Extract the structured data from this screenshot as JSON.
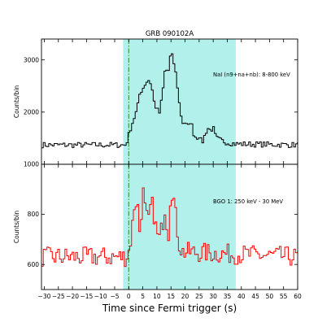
{
  "chart_data": [
    {
      "type": "line",
      "title": "GRB 090102A",
      "ylabel": "Counts/bin",
      "annotation": "NaI (n9+na+nb): 8-800 keV",
      "line_color": "#000000",
      "shade_color": "#b2f0ec",
      "shade_interval": [
        -2,
        38
      ],
      "trigger_line_color": "#2a8a2a",
      "trigger_time": 0,
      "ylim": [
        1000,
        3400
      ],
      "yticks": [
        1000,
        2000,
        3000
      ],
      "background_level": 1370,
      "keypoints": [
        [
          -31,
          1370
        ],
        [
          -1,
          1370
        ],
        [
          0,
          1560
        ],
        [
          1,
          1750
        ],
        [
          2,
          1900
        ],
        [
          3,
          2050
        ],
        [
          4,
          2380
        ],
        [
          5,
          2450
        ],
        [
          6,
          2560
        ],
        [
          7,
          2620
        ],
        [
          8,
          2540
        ],
        [
          9,
          2200
        ],
        [
          10,
          2050
        ],
        [
          11,
          1980
        ],
        [
          12,
          2350
        ],
        [
          13,
          2850
        ],
        [
          14,
          2750
        ],
        [
          15,
          3150
        ],
        [
          16,
          2950
        ],
        [
          17,
          2650
        ],
        [
          18,
          2150
        ],
        [
          19,
          1800
        ],
        [
          20,
          1800
        ],
        [
          21,
          1700
        ],
        [
          22,
          1850
        ],
        [
          23,
          1600
        ],
        [
          24,
          1500
        ],
        [
          25,
          1550
        ],
        [
          26,
          1400
        ],
        [
          28,
          1700
        ],
        [
          29,
          1650
        ],
        [
          30,
          1700
        ],
        [
          31,
          1500
        ],
        [
          33,
          1450
        ],
        [
          35,
          1420
        ],
        [
          38,
          1390
        ],
        [
          60,
          1370
        ]
      ]
    },
    {
      "type": "line",
      "ylabel": "Counts/bin",
      "annotation": "BGO 1: 250 keV - 30 MeV",
      "line_color": "#ff0000",
      "shade_color": "#b2f0ec",
      "shade_interval": [
        -2,
        38
      ],
      "trigger_line_color": "#2a8a2a",
      "trigger_time": 0,
      "ylim": [
        500,
        1000
      ],
      "yticks": [
        600,
        800
      ],
      "xlabel": "Time since Fermi trigger (s)",
      "xlim": [
        -31,
        60
      ],
      "xticks": [
        -30,
        -25,
        -20,
        -15,
        -10,
        -5,
        0,
        5,
        10,
        15,
        20,
        25,
        30,
        35,
        40,
        45,
        50,
        55,
        60
      ],
      "background_level": 630,
      "keypoints": [
        [
          -31,
          630
        ],
        [
          -1,
          630
        ],
        [
          0,
          650
        ],
        [
          1,
          720
        ],
        [
          2,
          840
        ],
        [
          3,
          860
        ],
        [
          4,
          720
        ],
        [
          5,
          900
        ],
        [
          6,
          800
        ],
        [
          7,
          760
        ],
        [
          8,
          850
        ],
        [
          9,
          800
        ],
        [
          10,
          720
        ],
        [
          11,
          700
        ],
        [
          12,
          760
        ],
        [
          13,
          840
        ],
        [
          14,
          700
        ],
        [
          15,
          920
        ],
        [
          16,
          860
        ],
        [
          17,
          760
        ],
        [
          18,
          680
        ],
        [
          19,
          650
        ],
        [
          60,
          630
        ]
      ]
    }
  ]
}
